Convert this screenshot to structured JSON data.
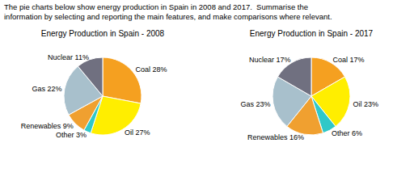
{
  "title": "The pie charts below show energy production in Spain in 2008 and 2017.  Summarise the\ninformation by selecting and reporting the main features, and make comparisons where relevant.",
  "chart_data": [
    {
      "type": "pie",
      "title": "Energy Production in Spain - 2008",
      "categories": [
        "Coal 28%",
        "Oil 27%",
        "Other 3%",
        "Renewables 9%",
        "Gas 22%",
        "Nuclear 11%"
      ],
      "values": [
        28,
        27,
        3,
        9,
        22,
        11
      ],
      "colors": [
        "#F5A020",
        "#FFEE00",
        "#30C8C8",
        "#F0A030",
        "#A8C0CC",
        "#707080"
      ]
    },
    {
      "type": "pie",
      "title": "Energy Production in Spain - 2017",
      "categories": [
        "Coal 17%",
        "Oil 23%",
        "Other 6%",
        "Renewables 16%",
        "Gas 23%",
        "Nuclear 17%"
      ],
      "values": [
        17,
        23,
        6,
        16,
        23,
        17
      ],
      "colors": [
        "#F5A020",
        "#FFEE00",
        "#30C8C8",
        "#F0A030",
        "#A8C0CC",
        "#707080"
      ]
    }
  ]
}
